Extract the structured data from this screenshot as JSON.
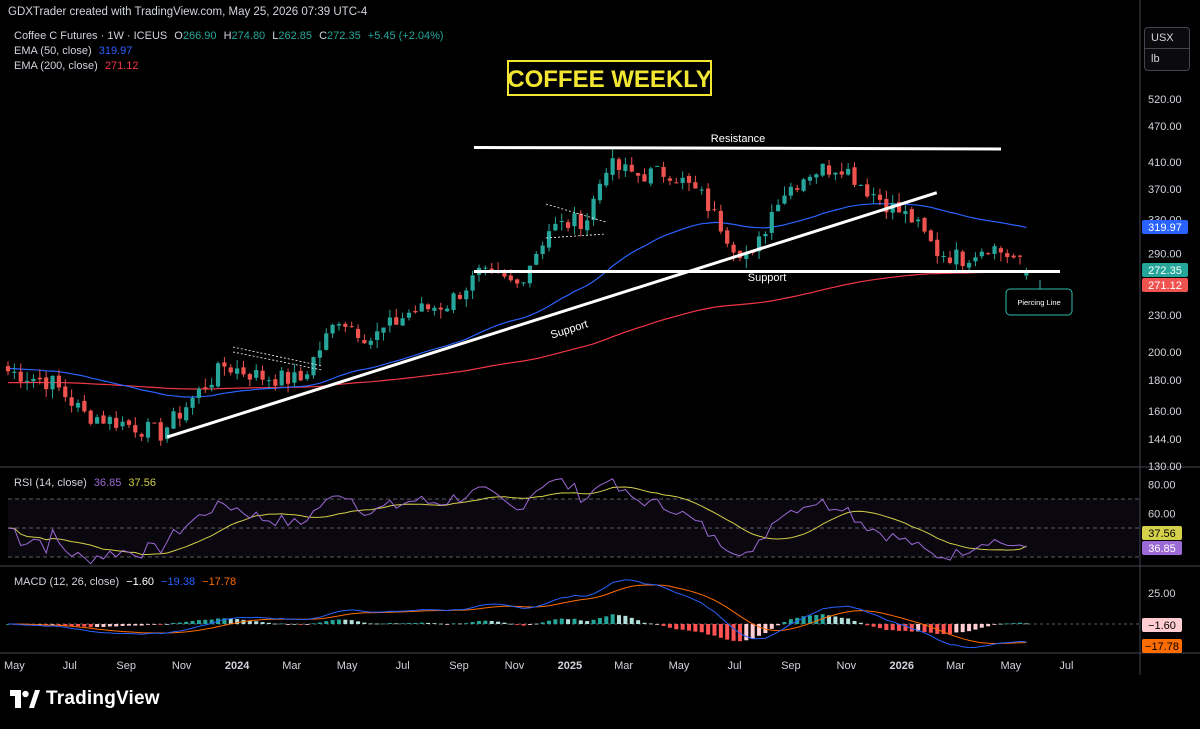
{
  "credit": "GDXTrader created with TradingView.com, May 25, 2026 07:39 UTC-4",
  "symbol_line": {
    "name": "Coffee C Futures · 1W · ICEUS",
    "o_label": "O",
    "o": "266.90",
    "h_label": "H",
    "h": "274.80",
    "l_label": "L",
    "l": "262.85",
    "c_label": "C",
    "c": "272.35",
    "change": "+5.45 (+2.04%)"
  },
  "ema50": {
    "label": "EMA (50, close)",
    "value": "319.97"
  },
  "ema200": {
    "label": "EMA (200, close)",
    "value": "271.12"
  },
  "rsi": {
    "label": "RSI (14, close)",
    "value": "36.85",
    "ma": "37.56"
  },
  "macd": {
    "label": "MACD (12, 26, close)",
    "hist": "−1.60",
    "macd": "−19.38",
    "signal": "−17.78"
  },
  "unit": {
    "currency": "USX",
    "measure": "lb"
  },
  "branding": "TradingView",
  "colors": {
    "up": "#26a69a",
    "down": "#ef5350",
    "ema50": "#2962ff",
    "ema200": "#f23645",
    "rsi": "#9c6ad6",
    "rsi_ma": "#d4d04a",
    "macd": "#2962ff",
    "signal": "#ff6d00",
    "title_box": "#f2e633"
  },
  "chart_data": [
    {
      "type": "candlestick",
      "title": "COFFEE WEEKLY",
      "scale": "log",
      "y_ticks": [
        520,
        470,
        410,
        370,
        330,
        290,
        260,
        230,
        200,
        180,
        160,
        144,
        130
      ],
      "x_ticks": [
        "May",
        "Jul",
        "Sep",
        "Nov",
        "2024",
        "Mar",
        "May",
        "Jul",
        "Sep",
        "Nov",
        "2025",
        "Mar",
        "May",
        "Jul",
        "Sep",
        "Nov",
        "2026",
        "Mar",
        "May",
        "Jul"
      ],
      "price_labels": {
        "last": 272.35,
        "ema50": 319.97,
        "ema200": 271.12
      },
      "annotations": {
        "resistance": "Resistance",
        "support_h": "Support",
        "support_trend": "Support",
        "pattern": "Piercing Line"
      },
      "resistance_level": 433,
      "support_level": 271,
      "trendline": {
        "from": {
          "date": "2023-10-16",
          "price": 145
        },
        "to": {
          "date": "2026-01-12",
          "price": 365
        }
      },
      "series": [
        {
          "name": "EMA (50, close)",
          "key": "ema50"
        },
        {
          "name": "EMA (200, close)",
          "key": "ema200"
        }
      ]
    },
    {
      "type": "line",
      "title": "RSI (14, close)",
      "y_ticks": [
        80,
        60
      ],
      "bands": [
        70,
        50,
        30
      ],
      "last": {
        "rsi": 36.85,
        "ma": 37.56
      }
    },
    {
      "type": "bar",
      "title": "MACD (12, 26, close)",
      "y_ticks": [
        25
      ],
      "last": {
        "hist": -1.6,
        "macd": -19.38,
        "signal": -17.78
      }
    }
  ]
}
